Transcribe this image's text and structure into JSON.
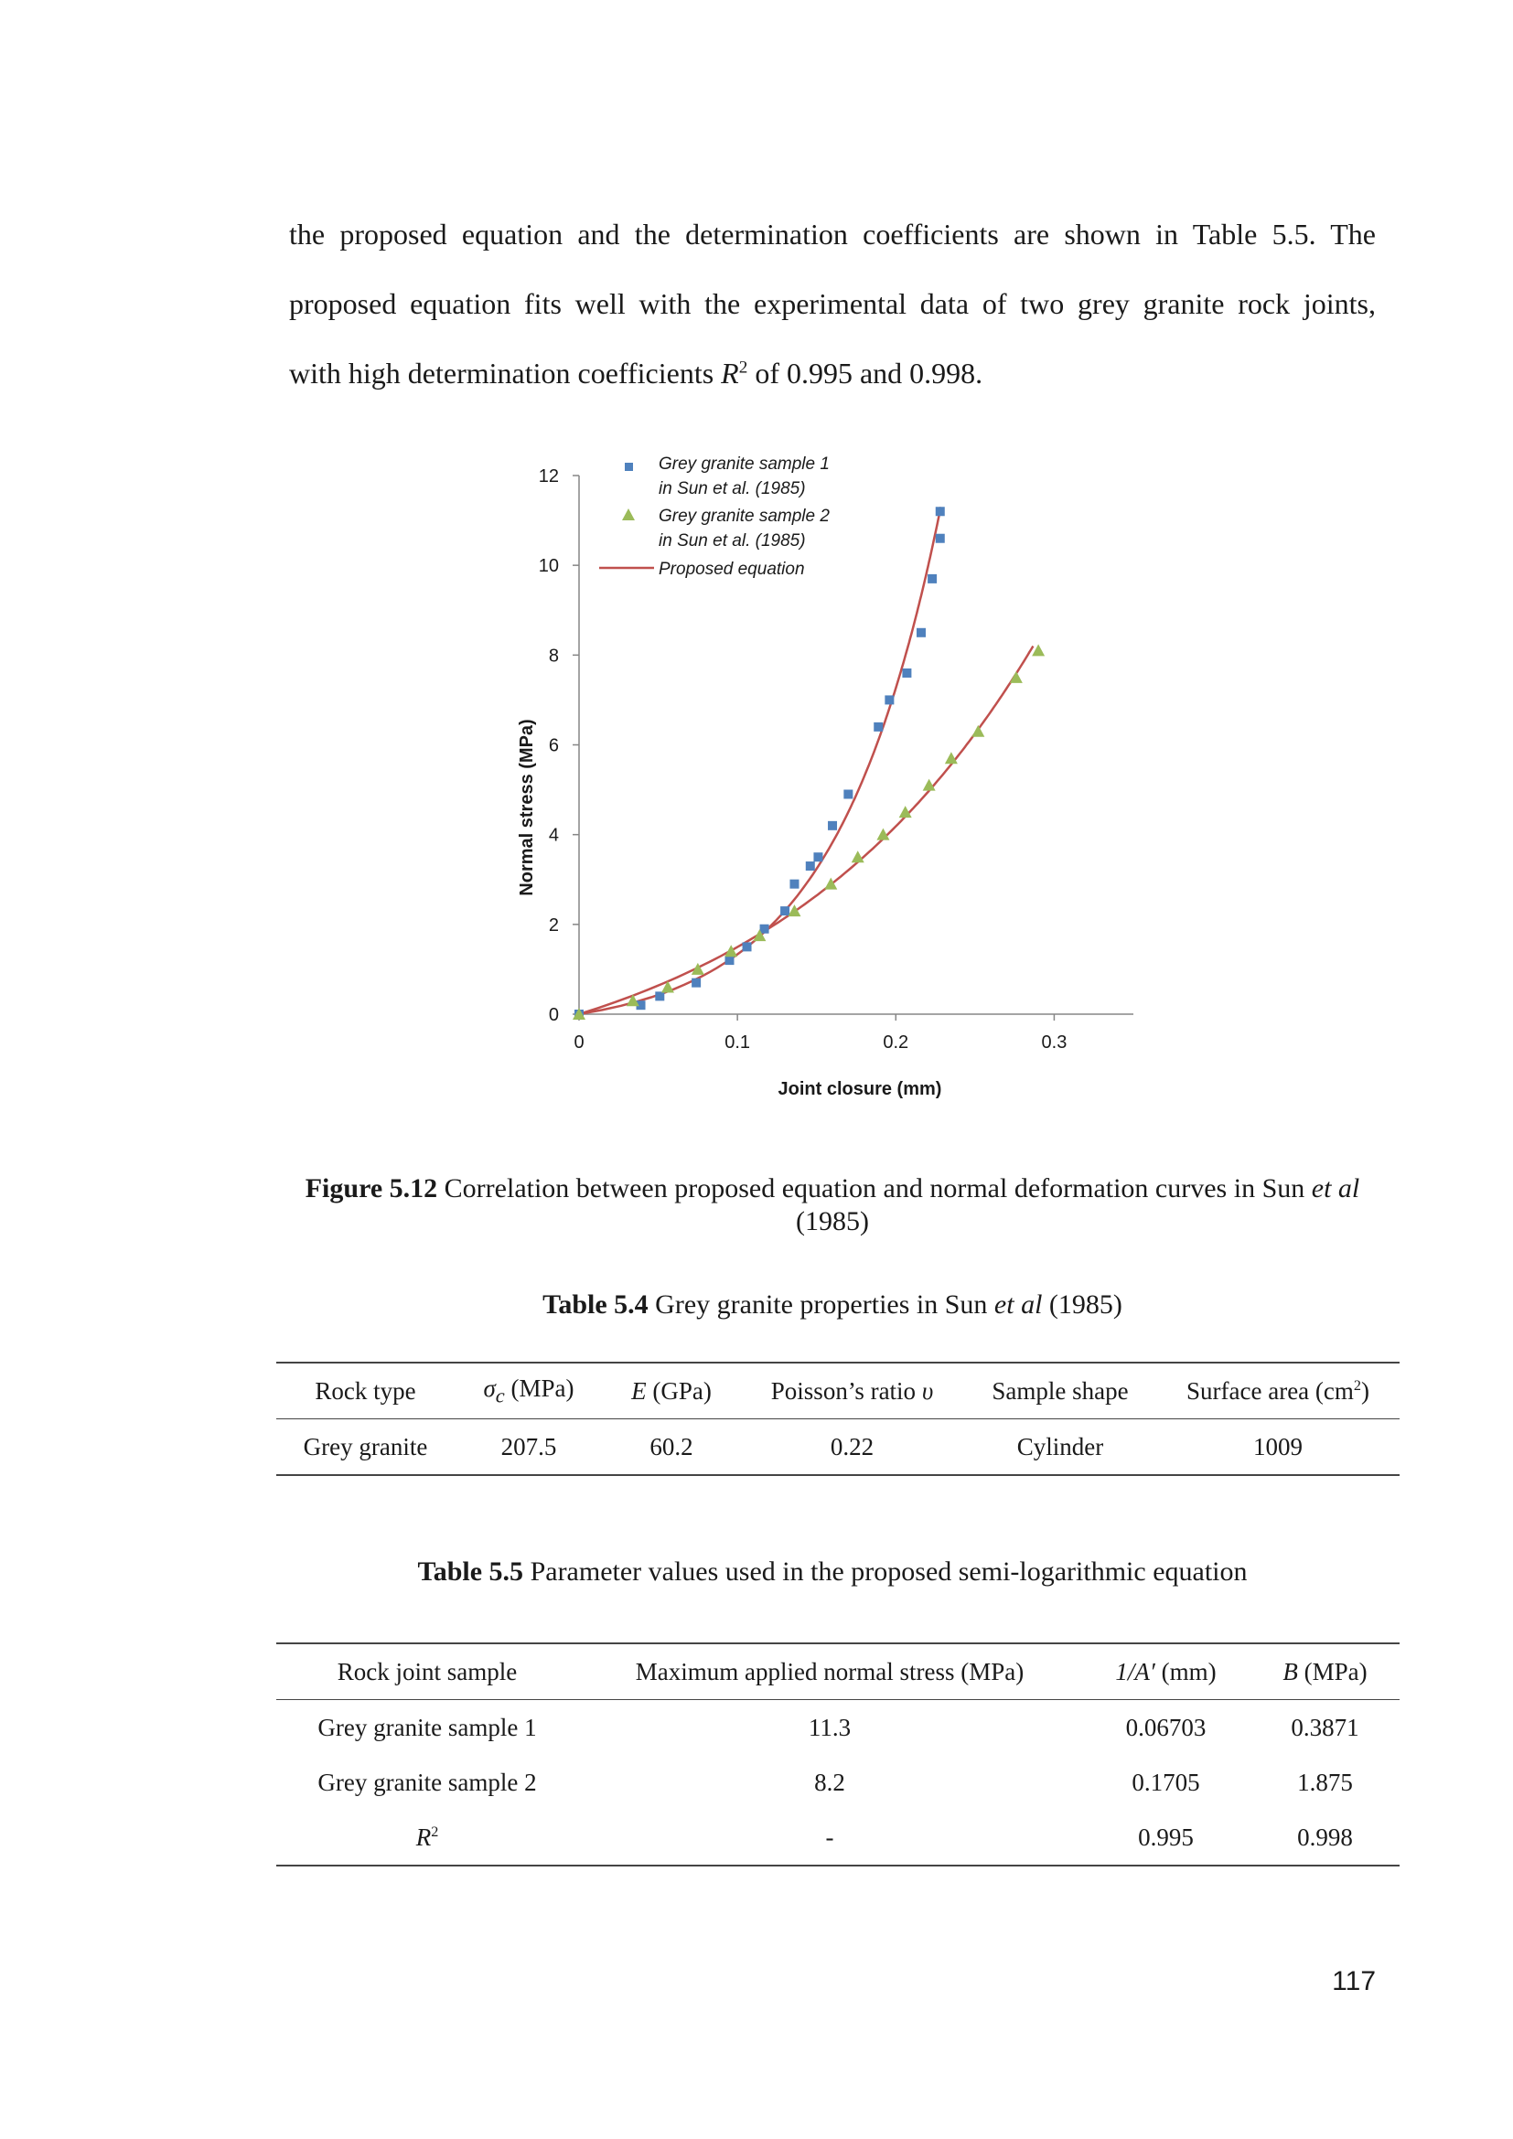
{
  "paragraph": {
    "line1": "the proposed equation and the determination coefficients are shown in Table 5.5. The",
    "line2": "proposed equation fits well with the experimental data of two grey granite rock joints,",
    "line3_pre": "with high determination coefficients ",
    "line3_var": "R",
    "line3_sup": "2",
    "line3_post": " of 0.995 and 0.998."
  },
  "chart_data": {
    "type": "scatter",
    "xlabel": "Joint closure (mm)",
    "ylabel": "Normal stress (MPa)",
    "xlim": [
      0,
      0.35
    ],
    "ylim": [
      0,
      12
    ],
    "xticks": [
      "0",
      "0.1",
      "0.2",
      "0.3"
    ],
    "yticks": [
      "0",
      "2",
      "4",
      "6",
      "8",
      "10",
      "12"
    ],
    "xtick_values": [
      0,
      0.1,
      0.2,
      0.3
    ],
    "ytick_values": [
      0,
      2,
      4,
      6,
      8,
      10,
      12
    ],
    "legend": [
      "Grey granite sample 1",
      "in Sun et al. (1985)",
      "Grey granite sample 2",
      "in Sun et al. (1985)",
      "Proposed equation"
    ],
    "series": [
      {
        "name": "Grey granite sample 1 in Sun et al. (1985)",
        "marker": "square",
        "color": "#4F81BD",
        "x": [
          0,
          0.039,
          0.051,
          0.074,
          0.095,
          0.106,
          0.117,
          0.13,
          0.136,
          0.146,
          0.151,
          0.16,
          0.17,
          0.189,
          0.196,
          0.207,
          0.216,
          0.223,
          0.228,
          0.228
        ],
        "y": [
          0,
          0.2,
          0.4,
          0.7,
          1.2,
          1.5,
          1.9,
          2.3,
          2.9,
          3.3,
          3.5,
          4.2,
          4.9,
          6.4,
          7.0,
          7.6,
          8.5,
          9.7,
          10.6,
          11.2
        ]
      },
      {
        "name": "Grey granite sample 2 in Sun et al. (1985)",
        "marker": "triangle",
        "color": "#9BBB59",
        "x": [
          0,
          0.034,
          0.056,
          0.075,
          0.096,
          0.114,
          0.136,
          0.159,
          0.176,
          0.192,
          0.206,
          0.221,
          0.235,
          0.252,
          0.276,
          0.29
        ],
        "y": [
          0,
          0.3,
          0.6,
          1.0,
          1.4,
          1.75,
          2.3,
          2.9,
          3.5,
          4.0,
          4.5,
          5.1,
          5.7,
          6.3,
          7.5,
          8.1
        ]
      }
    ],
    "lines": [
      {
        "name": "Proposed equation",
        "color": "#C0504D",
        "inv_a": 0.06703,
        "b": 0.3871,
        "ymax": 11.3
      },
      {
        "name": "Proposed equation",
        "color": "#C0504D",
        "inv_a": 0.1705,
        "b": 1.875,
        "ymax": 8.2
      }
    ]
  },
  "figure_caption": {
    "label": "Figure 5.12",
    "text": " Correlation between proposed equation and normal deformation curves in Sun ",
    "etal": "et al",
    "year": "(1985)"
  },
  "table54": {
    "caption_label": "Table 5.4",
    "caption_text": " Grey granite properties in Sun ",
    "caption_etal": "et al",
    "caption_year": " (1985)",
    "headers": {
      "rock_type": "Rock type",
      "sigma_sym": "σ",
      "sigma_sub": "c",
      "sigma_unit": " (MPa)",
      "e_sym": "E",
      "e_unit": " (GPa)",
      "poisson": "Poisson’s ratio ",
      "poisson_sym": "υ",
      "shape": "Sample shape",
      "area": "Surface area (cm",
      "area_sup": "2",
      "area_close": ")"
    },
    "row": [
      "Grey granite",
      "207.5",
      "60.2",
      "0.22",
      "Cylinder",
      "1009"
    ]
  },
  "table55": {
    "caption_label": "Table 5.5",
    "caption_text": " Parameter values used in the proposed semi-logarithmic equation",
    "headers": {
      "sample": "Rock joint sample",
      "max_stress": "Maximum applied normal stress (MPa)",
      "inv_a": "1/A′",
      "inv_a_unit": " (mm)",
      "b": "B",
      "b_unit": " (MPa)"
    },
    "rows": [
      [
        "Grey granite sample 1",
        "11.3",
        "0.06703",
        "0.3871"
      ],
      [
        "Grey granite sample 2",
        "8.2",
        "0.1705",
        "1.875"
      ]
    ],
    "r2_var": "R",
    "r2_sup": "2",
    "r2_row": [
      "-",
      "0.995",
      "0.998"
    ]
  },
  "page_number": "117"
}
